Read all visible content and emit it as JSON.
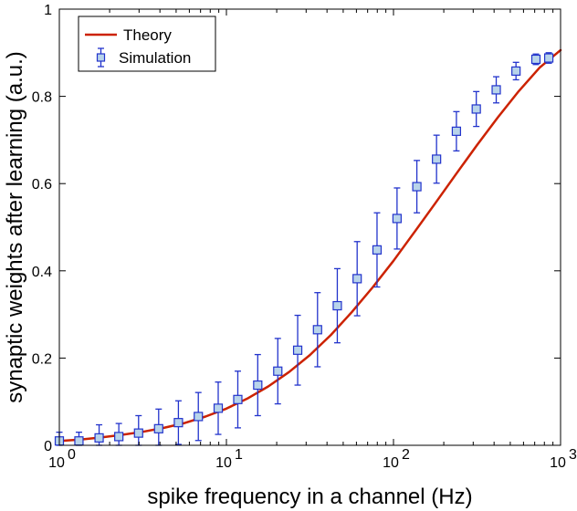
{
  "chart_data": {
    "type": "line",
    "xscale": "log",
    "xlim": [
      1,
      1000
    ],
    "ylim": [
      0,
      1
    ],
    "xlabel": "spike frequency in a channel (Hz)",
    "ylabel": "synaptic weights after learning (a.u.)",
    "title": "",
    "grid": false,
    "legend_position": "top-left",
    "xticks": [
      {
        "value": 1,
        "base": "10",
        "exp": "0"
      },
      {
        "value": 10,
        "base": "10",
        "exp": "1"
      },
      {
        "value": 100,
        "base": "10",
        "exp": "2"
      },
      {
        "value": 1000,
        "base": "10",
        "exp": "3"
      }
    ],
    "yticks": [
      {
        "value": 0,
        "label": "0"
      },
      {
        "value": 0.2,
        "label": "0.2"
      },
      {
        "value": 0.4,
        "label": "0.4"
      },
      {
        "value": 0.6,
        "label": "0.6"
      },
      {
        "value": 0.8,
        "label": "0.8"
      },
      {
        "value": 1,
        "label": "1"
      }
    ],
    "series": [
      {
        "name": "Theory",
        "kind": "line",
        "color": "#cc2200",
        "x": [
          1,
          1.33,
          1.78,
          2.37,
          3.16,
          4.22,
          5.62,
          7.5,
          10,
          13.3,
          17.8,
          23.7,
          31.6,
          42.2,
          56.2,
          75,
          100,
          133,
          178,
          237,
          316,
          422,
          562,
          750,
          1000
        ],
        "y": [
          0.01,
          0.013,
          0.018,
          0.024,
          0.031,
          0.04,
          0.051,
          0.066,
          0.084,
          0.107,
          0.135,
          0.168,
          0.207,
          0.253,
          0.305,
          0.362,
          0.423,
          0.488,
          0.555,
          0.622,
          0.688,
          0.752,
          0.812,
          0.866,
          0.906
        ]
      },
      {
        "name": "Simulation",
        "kind": "errorbar",
        "color": "#2233cc",
        "marker_fill": "#b8d4ea",
        "x": [
          1,
          1.31,
          1.73,
          2.27,
          2.98,
          3.93,
          5.16,
          6.79,
          8.93,
          11.7,
          15.4,
          20.3,
          26.7,
          35.1,
          46.1,
          60.6,
          79.7,
          105,
          138,
          181,
          238,
          313,
          412,
          541,
          712,
          850
        ],
        "y": [
          0.01,
          0.01,
          0.017,
          0.02,
          0.028,
          0.038,
          0.052,
          0.066,
          0.085,
          0.105,
          0.138,
          0.17,
          0.218,
          0.265,
          0.32,
          0.382,
          0.448,
          0.52,
          0.593,
          0.656,
          0.72,
          0.771,
          0.815,
          0.858,
          0.885,
          0.888
        ],
        "err": [
          0.02,
          0.02,
          0.03,
          0.03,
          0.04,
          0.045,
          0.05,
          0.055,
          0.06,
          0.065,
          0.07,
          0.075,
          0.08,
          0.085,
          0.085,
          0.085,
          0.085,
          0.07,
          0.06,
          0.055,
          0.045,
          0.04,
          0.03,
          0.02,
          0.012,
          0.012
        ]
      }
    ]
  }
}
